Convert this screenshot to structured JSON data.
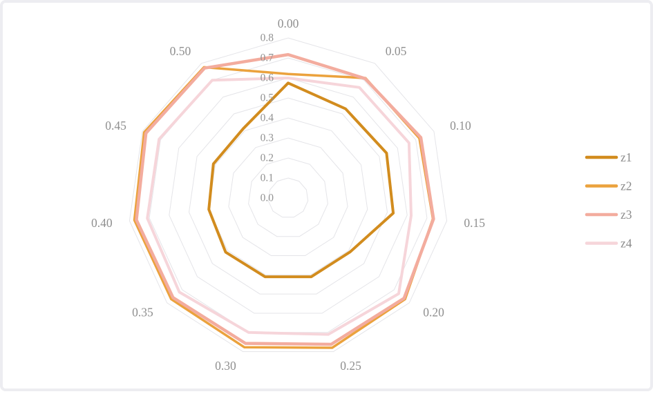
{
  "chart_data": {
    "type": "line",
    "variant": "radar",
    "title": "",
    "categories": [
      "0.00",
      "0.05",
      "0.10",
      "0.15",
      "0.20",
      "0.25",
      "0.30",
      "0.35",
      "0.40",
      "0.45",
      "0.50"
    ],
    "series": [
      {
        "name": "z1",
        "color": "#D28C1E",
        "stroke_width": 4,
        "values": [
          0.575,
          0.53,
          0.54,
          0.53,
          0.41,
          0.41,
          0.41,
          0.413,
          0.4,
          0.41,
          0.413
        ]
      },
      {
        "name": "z2",
        "color": "#EBA23D",
        "stroke_width": 3.5,
        "values": [
          0.62,
          0.713,
          0.72,
          0.73,
          0.772,
          0.78,
          0.777,
          0.772,
          0.775,
          0.79,
          0.777
        ]
      },
      {
        "name": "z3",
        "color": "#F3AC9E",
        "stroke_width": 4.5,
        "values": [
          0.717,
          0.71,
          0.728,
          0.733,
          0.765,
          0.762,
          0.757,
          0.76,
          0.765,
          0.78,
          0.772
        ]
      },
      {
        "name": "z4",
        "color": "#F6D5DA",
        "stroke_width": 4,
        "values": [
          0.6,
          0.657,
          0.663,
          0.62,
          0.73,
          0.71,
          0.7,
          0.718,
          0.71,
          0.708,
          0.7
        ]
      }
    ],
    "radial_axis": {
      "min": 0,
      "max": 0.8,
      "step": 0.1,
      "ticks": [
        "0.0",
        "0.1",
        "0.2",
        "0.3",
        "0.4",
        "0.5",
        "0.6",
        "0.7",
        "0.8"
      ]
    },
    "ylim": [
      0,
      0.8
    ],
    "grid": true,
    "gridline_color": "#E4E4E8",
    "category_label_color": "#8F8F8F",
    "tick_label_color": "#929292",
    "legend_label_color": "#8A8A8A",
    "legend_position": "right",
    "legend_entries": [
      "z1",
      "z2",
      "z3",
      "z4"
    ]
  }
}
